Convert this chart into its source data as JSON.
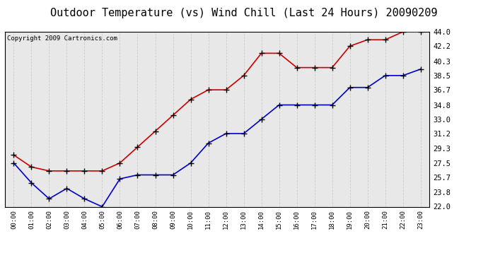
{
  "title": "Outdoor Temperature (vs) Wind Chill (Last 24 Hours) 20090209",
  "copyright": "Copyright 2009 Cartronics.com",
  "hours": [
    "00:00",
    "01:00",
    "02:00",
    "03:00",
    "04:00",
    "05:00",
    "06:00",
    "07:00",
    "08:00",
    "09:00",
    "10:00",
    "11:00",
    "12:00",
    "13:00",
    "14:00",
    "15:00",
    "16:00",
    "17:00",
    "18:00",
    "19:00",
    "20:00",
    "21:00",
    "22:00",
    "23:00"
  ],
  "temp": [
    28.5,
    27.0,
    26.5,
    26.5,
    26.5,
    26.5,
    27.5,
    29.5,
    31.5,
    33.5,
    35.5,
    36.7,
    36.7,
    38.5,
    41.3,
    41.3,
    39.5,
    39.5,
    39.5,
    42.2,
    43.0,
    43.0,
    44.0,
    44.0
  ],
  "wind_chill": [
    27.5,
    25.0,
    23.0,
    24.3,
    23.0,
    22.0,
    25.5,
    26.0,
    26.0,
    26.0,
    27.5,
    30.0,
    31.2,
    31.2,
    33.0,
    34.8,
    34.8,
    34.8,
    34.8,
    37.0,
    37.0,
    38.5,
    38.5,
    39.3
  ],
  "y_ticks": [
    22.0,
    23.8,
    25.7,
    27.5,
    29.3,
    31.2,
    33.0,
    34.8,
    36.7,
    38.5,
    40.3,
    42.2,
    44.0
  ],
  "y_min": 22.0,
  "y_max": 44.0,
  "temp_color": "#cc0000",
  "wind_chill_color": "#0000cc",
  "bg_color": "#ffffff",
  "plot_bg_color": "#e8e8e8",
  "grid_color": "#cccccc",
  "title_fontsize": 11,
  "copyright_fontsize": 6.5
}
